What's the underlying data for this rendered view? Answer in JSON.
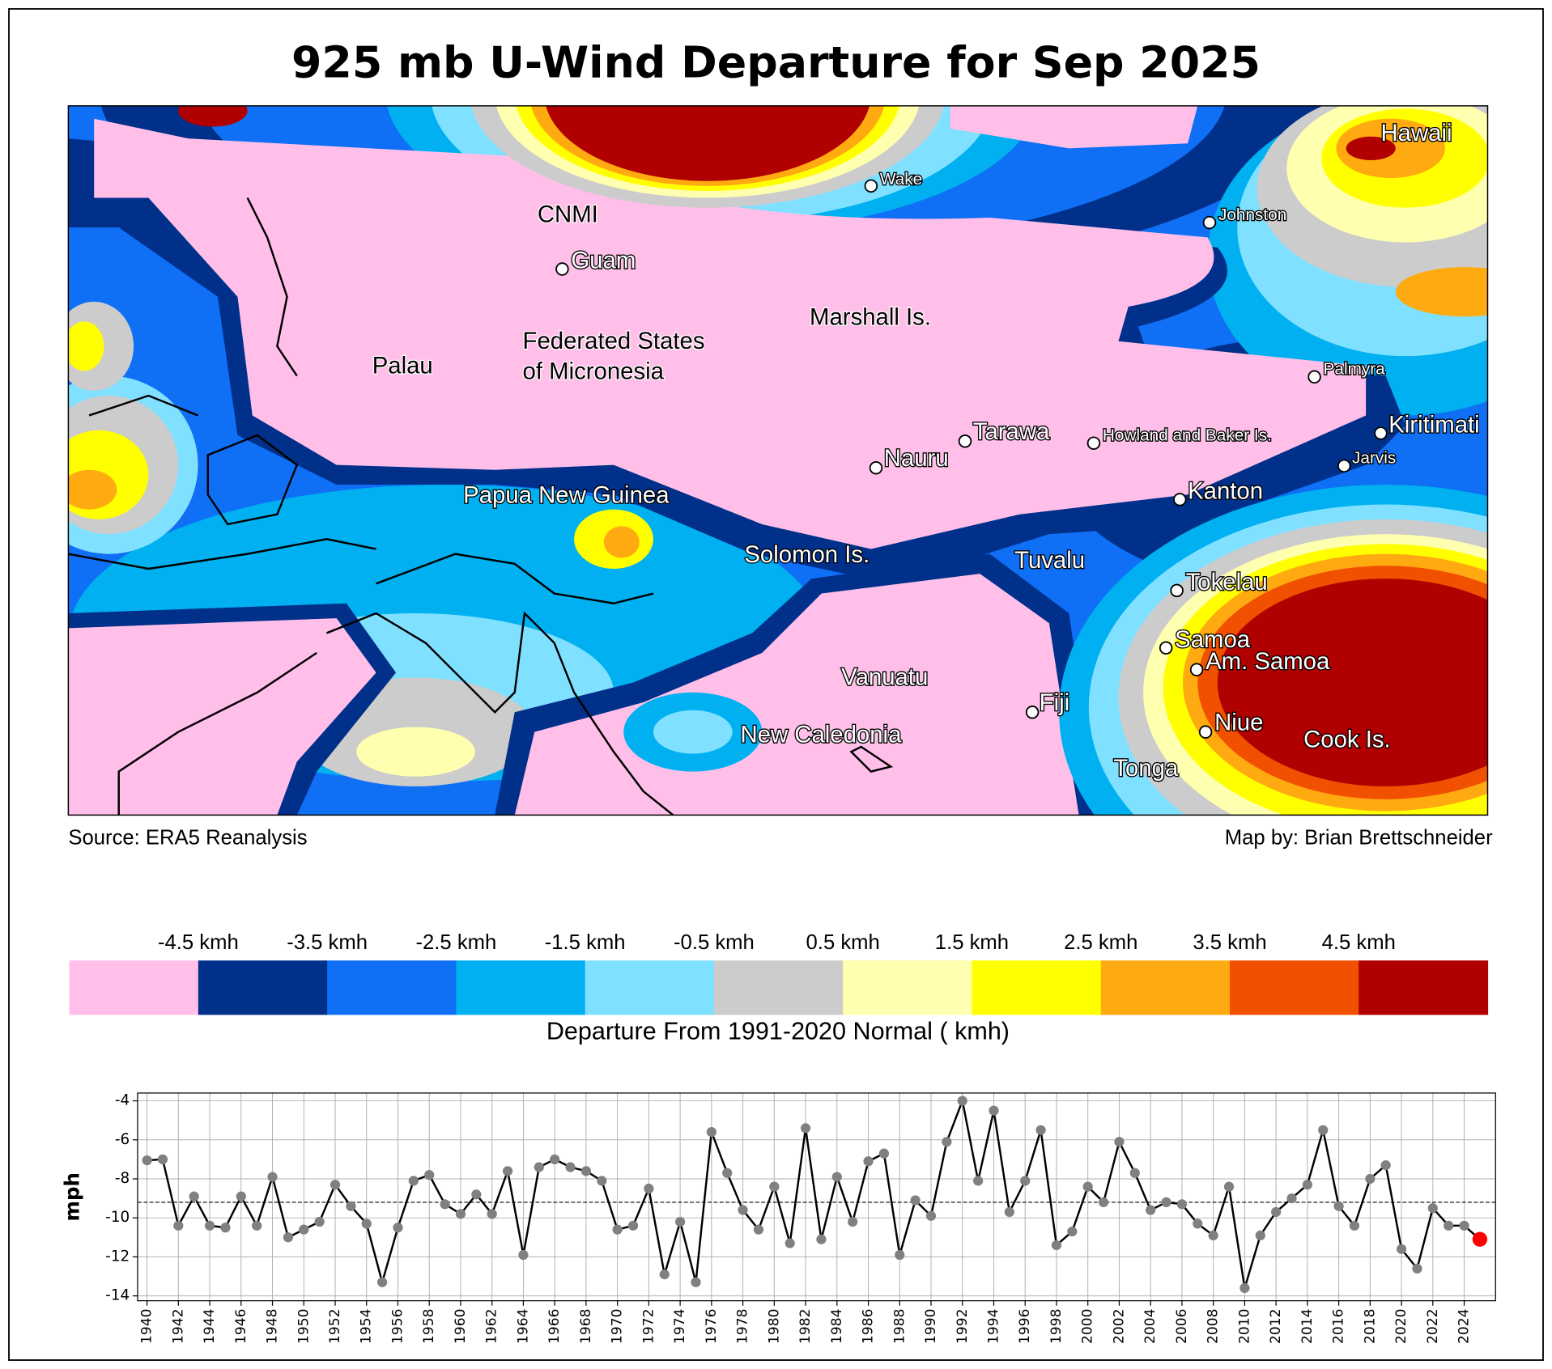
{
  "title": "925 mb U-Wind Departure for Sep 2025",
  "map": {
    "labels": [
      "Wake",
      "CNMI",
      "Guam",
      "Marshall Is.",
      "Palau",
      "Federated States",
      "of Micronesia",
      "Tarawa",
      "Nauru",
      "Howland and Baker Is.",
      "Kiritimati",
      "Jarvis",
      "Kanton",
      "Johnston",
      "Palmyra",
      "Hawaii",
      "Papua New Guinea",
      "Solomon Is.",
      "Tuvalu",
      "Tokelau",
      "Samoa",
      "Am. Samoa",
      "Vanuatu",
      "Fiji",
      "New Caledonia",
      "Niue",
      "Cook Is.",
      "Tonga"
    ],
    "source": "Source: ERA5 Reanalysis",
    "credit": "Map by: Brian Brettschneider"
  },
  "colorbar": {
    "colors": [
      "#ffbfe9",
      "#00308a",
      "#0f6ff5",
      "#00b0f0",
      "#80e0ff",
      "#cccccc",
      "#ffffb0",
      "#ffff00",
      "#ffaa10",
      "#f05000",
      "#b00000"
    ],
    "ticks": [
      {
        "value": -4.5,
        "label": "-4.5 kmh"
      },
      {
        "value": -3.5,
        "label": "-3.5 kmh"
      },
      {
        "value": -2.5,
        "label": "-2.5 kmh"
      },
      {
        "value": -1.5,
        "label": "-1.5 kmh"
      },
      {
        "value": -0.5,
        "label": "-0.5 kmh"
      },
      {
        "value": 0.5,
        "label": "0.5 kmh"
      },
      {
        "value": 1.5,
        "label": "1.5 kmh"
      },
      {
        "value": 2.5,
        "label": "2.5 kmh"
      },
      {
        "value": 3.5,
        "label": "3.5 kmh"
      },
      {
        "value": 4.5,
        "label": "4.5 kmh"
      }
    ],
    "label": "Departure From 1991-2020 Normal ( kmh)"
  },
  "chart_data": {
    "type": "line",
    "ylabel": "mph",
    "x": [
      1940,
      1941,
      1942,
      1943,
      1944,
      1945,
      1946,
      1947,
      1948,
      1949,
      1950,
      1951,
      1952,
      1953,
      1954,
      1955,
      1956,
      1957,
      1958,
      1959,
      1960,
      1961,
      1962,
      1963,
      1964,
      1965,
      1966,
      1967,
      1968,
      1969,
      1970,
      1971,
      1972,
      1973,
      1974,
      1975,
      1976,
      1977,
      1978,
      1979,
      1980,
      1981,
      1982,
      1983,
      1984,
      1985,
      1986,
      1987,
      1988,
      1989,
      1990,
      1991,
      1992,
      1993,
      1994,
      1995,
      1996,
      1997,
      1998,
      1999,
      2000,
      2001,
      2002,
      2003,
      2004,
      2005,
      2006,
      2007,
      2008,
      2009,
      2010,
      2011,
      2012,
      2013,
      2014,
      2015,
      2016,
      2017,
      2018,
      2019,
      2020,
      2021,
      2022,
      2023,
      2024,
      2025
    ],
    "series": [
      {
        "color": "#000000",
        "marker_color": "#808080",
        "highlight_color": "#ff0000",
        "values": [
          -7.05,
          -7.0,
          -10.4,
          -8.9,
          -10.4,
          -10.5,
          -8.9,
          -10.4,
          -7.9,
          -11.0,
          -10.6,
          -10.2,
          -8.3,
          -9.4,
          -10.3,
          -13.3,
          -10.5,
          -8.1,
          -7.8,
          -9.3,
          -9.8,
          -8.8,
          -9.8,
          -7.6,
          -11.9,
          -7.4,
          -7.0,
          -7.4,
          -7.6,
          -8.1,
          -10.6,
          -10.4,
          -8.5,
          -12.9,
          -10.2,
          -13.3,
          -5.6,
          -7.7,
          -9.6,
          -10.6,
          -8.4,
          -11.3,
          -5.4,
          -11.1,
          -7.9,
          -10.2,
          -7.1,
          -6.7,
          -11.9,
          -9.1,
          -9.9,
          -6.1,
          -4.0,
          -8.1,
          -4.5,
          -9.7,
          -8.1,
          -5.5,
          -11.4,
          -10.7,
          -8.4,
          -9.2,
          -6.1,
          -7.7,
          -9.6,
          -9.2,
          -9.3,
          -10.3,
          -10.9,
          -8.4,
          -13.6,
          -10.9,
          -9.7,
          -9.0,
          -8.3,
          -5.5,
          -9.4,
          -10.4,
          -8.0,
          -7.3,
          -11.6,
          -12.6,
          -9.5,
          -10.4,
          -10.4,
          -11.1
        ]
      }
    ],
    "reference_line": -9.2,
    "xlim": [
      1939.4,
      2026
    ],
    "ylim": [
      -14.25,
      -3.6
    ],
    "xticks": [
      1940,
      1942,
      1944,
      1946,
      1948,
      1950,
      1952,
      1954,
      1956,
      1958,
      1960,
      1962,
      1964,
      1966,
      1968,
      1970,
      1972,
      1974,
      1976,
      1978,
      1980,
      1982,
      1984,
      1986,
      1988,
      1990,
      1992,
      1994,
      1996,
      1998,
      2000,
      2002,
      2004,
      2006,
      2008,
      2010,
      2012,
      2014,
      2016,
      2018,
      2020,
      2022,
      2024
    ],
    "yticks": [
      -14,
      -12,
      -10,
      -8,
      -6,
      -4
    ],
    "grid": true
  }
}
